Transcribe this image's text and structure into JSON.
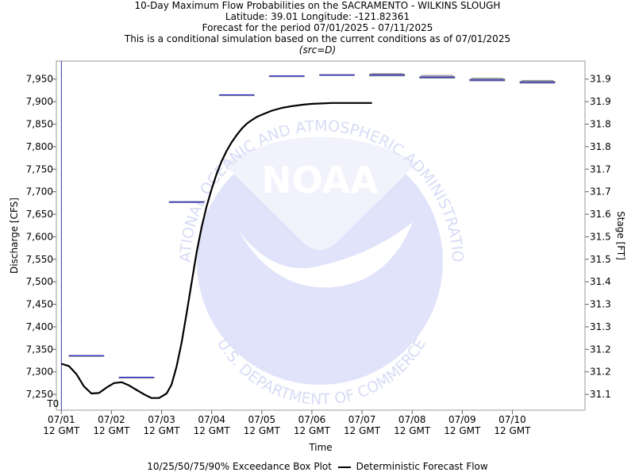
{
  "header": {
    "title": "10-Day Maximum Flow Probabilities on the SACRAMENTO - WILKINS SLOUGH",
    "location": "Latitude: 39.01 Longitude: -121.82361",
    "period": "Forecast for the period 07/01/2025 - 07/11/2025",
    "note": "This is a conditional simulation based on the current conditions as of 07/01/2025",
    "source": "(src=D)"
  },
  "watermark": {
    "top_text": "NATIONAL OCEANIC AND ATMOSPHERIC ADMINISTRATION",
    "center_text": "NOAA",
    "bottom_text": "U.S. DEPARTMENT OF COMMERCE"
  },
  "legend": {
    "boxplot_label": "10/25/50/75/90% Exceedance Box Plot",
    "line_label": "Deterministic Forecast Flow"
  },
  "colors": {
    "boxplot": "#3333cc",
    "forecast_line": "#000000",
    "t0_line": "#3333aa",
    "watermark": "#c8cdf5"
  },
  "chart_data": {
    "type": "line",
    "xlabel": "Time",
    "ylabel": "Discharge [CFS]",
    "ylabel_right": "Stage [FT]",
    "t0_label": "T0",
    "ylim": [
      7215,
      7990
    ],
    "xlim": [
      -0.1,
      10.45
    ],
    "y_ticks": [
      7250,
      7300,
      7350,
      7400,
      7450,
      7500,
      7550,
      7600,
      7650,
      7700,
      7750,
      7800,
      7850,
      7900,
      7950
    ],
    "y_tick_labels": [
      "7,250",
      "7,300",
      "7,350",
      "7,400",
      "7,450",
      "7,500",
      "7,550",
      "7,600",
      "7,650",
      "7,700",
      "7,750",
      "7,800",
      "7,850",
      "7,900",
      "7,950"
    ],
    "right_tick_labels": [
      "31.1",
      "31.2",
      "31.2",
      "31.3",
      "31.3",
      "31.4",
      "31.5",
      "31.5",
      "31.6",
      "31.7",
      "31.7",
      "31.8",
      "31.8",
      "31.9",
      "31.9"
    ],
    "x_ticks": [
      0,
      1,
      2,
      3,
      4,
      5,
      6,
      7,
      8,
      9
    ],
    "x_tick_labels": [
      [
        "07/01",
        "12 GMT"
      ],
      [
        "07/02",
        "12 GMT"
      ],
      [
        "07/03",
        "12 GMT"
      ],
      [
        "07/04",
        "12 GMT"
      ],
      [
        "07/05",
        "12 GMT"
      ],
      [
        "07/06",
        "12 GMT"
      ],
      [
        "07/07",
        "12 GMT"
      ],
      [
        "07/08",
        "12 GMT"
      ],
      [
        "07/09",
        "12 GMT"
      ],
      [
        "07/10",
        "12 GMT"
      ]
    ],
    "boxplots": [
      {
        "x": 0.5,
        "p10": 7336,
        "p25": 7336,
        "p50": 7336,
        "p75": 7336,
        "p90": 7336
      },
      {
        "x": 1.5,
        "p10": 7288,
        "p25": 7288,
        "p50": 7288,
        "p75": 7288,
        "p90": 7288
      },
      {
        "x": 2.5,
        "p10": 7676,
        "p25": 7676,
        "p50": 7677,
        "p75": 7678,
        "p90": 7678
      },
      {
        "x": 3.5,
        "p10": 7915,
        "p25": 7915,
        "p50": 7915,
        "p75": 7915,
        "p90": 7915
      },
      {
        "x": 4.5,
        "p10": 7956,
        "p25": 7956,
        "p50": 7957,
        "p75": 7957,
        "p90": 7957
      },
      {
        "x": 5.5,
        "p10": 7958,
        "p25": 7958,
        "p50": 7959,
        "p75": 7960,
        "p90": 7960
      },
      {
        "x": 6.5,
        "p10": 7957,
        "p25": 7957,
        "p50": 7959,
        "p75": 7961,
        "p90": 7962
      },
      {
        "x": 7.5,
        "p10": 7952,
        "p25": 7952,
        "p50": 7954,
        "p75": 7956,
        "p90": 7958
      },
      {
        "x": 8.5,
        "p10": 7946,
        "p25": 7946,
        "p50": 7948,
        "p75": 7950,
        "p90": 7952
      },
      {
        "x": 9.5,
        "p10": 7941,
        "p25": 7941,
        "p50": 7943,
        "p75": 7945,
        "p90": 7947
      }
    ],
    "series": [
      {
        "name": "Deterministic Forecast Flow",
        "x": [
          0,
          0.15,
          0.3,
          0.45,
          0.6,
          0.75,
          0.9,
          1.05,
          1.2,
          1.35,
          1.5,
          1.65,
          1.8,
          1.95,
          2.1,
          2.2,
          2.3,
          2.4,
          2.5,
          2.6,
          2.7,
          2.8,
          2.9,
          3.0,
          3.1,
          3.2,
          3.3,
          3.4,
          3.5,
          3.6,
          3.7,
          3.8,
          3.9,
          4.0,
          4.2,
          4.4,
          4.6,
          4.8,
          5.0,
          5.2,
          5.4,
          5.6,
          5.8,
          6.0,
          6.2
        ],
        "y": [
          7318,
          7313,
          7295,
          7268,
          7252,
          7253,
          7265,
          7275,
          7277,
          7270,
          7260,
          7250,
          7242,
          7242,
          7252,
          7272,
          7312,
          7365,
          7430,
          7498,
          7566,
          7622,
          7668,
          7706,
          7740,
          7768,
          7791,
          7810,
          7826,
          7840,
          7851,
          7859,
          7866,
          7871,
          7880,
          7886,
          7890,
          7893,
          7895,
          7896,
          7897,
          7897,
          7897,
          7897,
          7897
        ]
      }
    ],
    "grid": false,
    "legend_position": "bottom"
  }
}
